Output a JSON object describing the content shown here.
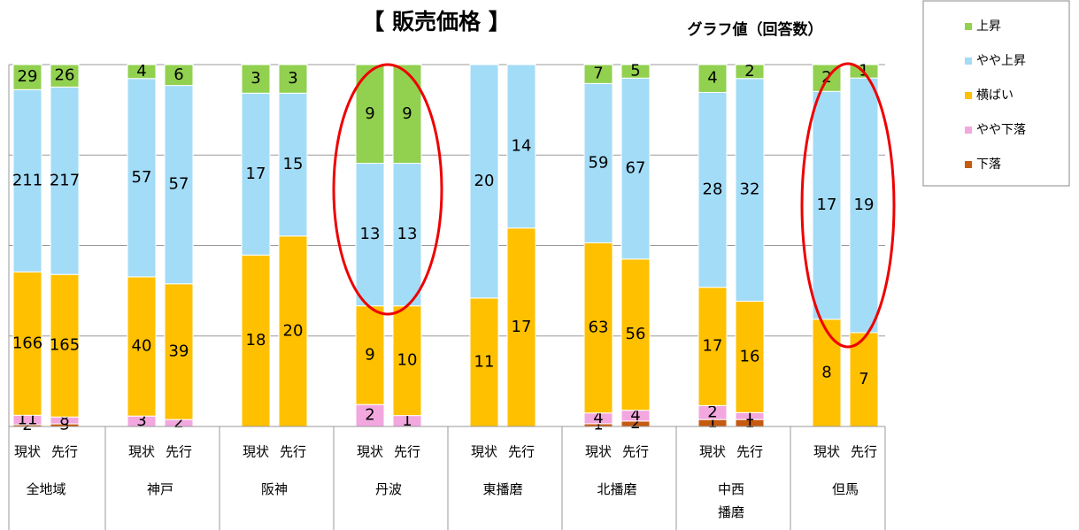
{
  "chart_data": {
    "type": "stacked_bar_percent",
    "title": "【 販売価格 】",
    "subtitle": "グラフ値（回答数）",
    "categories": [
      "現状",
      "先行",
      "現状",
      "先行",
      "現状",
      "先行",
      "現状",
      "先行",
      "現状",
      "先行",
      "現状",
      "先行",
      "現状",
      "先行",
      "現状",
      "先行"
    ],
    "groups": [
      "全地域",
      "神戸",
      "阪神",
      "丹波",
      "東播磨",
      "北播磨",
      "中西\n播磨",
      "但馬"
    ],
    "ylim": [
      0,
      100
    ],
    "yticks": [
      0,
      25,
      50,
      75,
      100
    ],
    "grid": true,
    "legend": "right",
    "series": [
      {
        "name": "下落",
        "color": "#c55a11",
        "values": [
          2,
          3,
          null,
          null,
          null,
          null,
          null,
          null,
          null,
          null,
          1,
          2,
          1,
          1,
          null,
          null
        ]
      },
      {
        "name": "やや下落",
        "color": "#f2a7df",
        "values": [
          11,
          8,
          3,
          2,
          null,
          null,
          2,
          1,
          null,
          null,
          4,
          4,
          2,
          1,
          null,
          null
        ]
      },
      {
        "name": "横ばい",
        "color": "#ffc000",
        "values": [
          166,
          165,
          40,
          39,
          18,
          20,
          9,
          10,
          11,
          17,
          63,
          56,
          17,
          16,
          8,
          7
        ]
      },
      {
        "name": "やや上昇",
        "color": "#a3dcf7",
        "values": [
          211,
          217,
          57,
          57,
          17,
          15,
          13,
          13,
          20,
          14,
          59,
          67,
          28,
          32,
          17,
          19
        ]
      },
      {
        "name": "上昇",
        "color": "#92d050",
        "values": [
          29,
          26,
          4,
          6,
          3,
          3,
          9,
          9,
          null,
          null,
          7,
          5,
          4,
          2,
          2,
          1
        ]
      }
    ]
  }
}
